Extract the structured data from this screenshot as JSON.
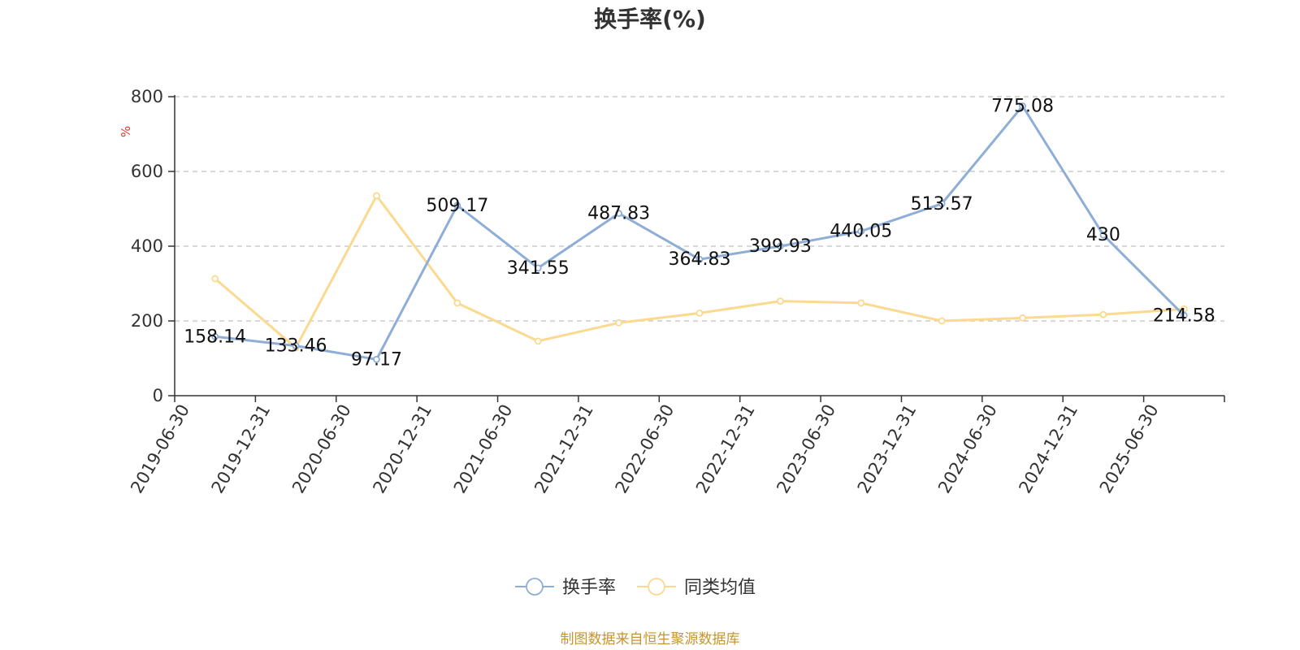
{
  "chart_data": {
    "type": "line",
    "title": "换手率(%)",
    "ylabel": "%",
    "ylim": [
      0,
      800
    ],
    "yticks": [
      0,
      200,
      400,
      600,
      800
    ],
    "categories": [
      "2019-06-30",
      "2019-12-31",
      "2020-06-30",
      "2020-12-31",
      "2021-06-30",
      "2021-12-31",
      "2022-06-30",
      "2022-12-31",
      "2023-06-30",
      "2023-12-31",
      "2024-06-30",
      "2024-12-31",
      "2025-06-30"
    ],
    "series": [
      {
        "name": "换手率",
        "color": "#8eaed8",
        "values": [
          158.14,
          133.46,
          97.17,
          509.17,
          341.55,
          487.83,
          364.83,
          399.93,
          440.05,
          513.57,
          775.08,
          430,
          214.58
        ],
        "labels": [
          "158.14",
          "133.46",
          "97.17",
          "509.17",
          "341.55",
          "487.83",
          "364.83",
          "399.93",
          "440.05",
          "513.57",
          "775.08",
          "430",
          "214.58"
        ]
      },
      {
        "name": "同类均值",
        "color": "#fbd98f",
        "values": [
          313,
          128,
          535,
          248,
          146,
          195,
          221,
          253,
          248,
          200,
          208,
          217,
          232
        ]
      }
    ],
    "grid": true,
    "legend_position": "bottom-center"
  },
  "colors": {
    "axis": "#333333",
    "grid": "#cccccc",
    "unit": "#e8322c",
    "source": "#c8942c"
  },
  "source_note": "制图数据来自恒生聚源数据库"
}
